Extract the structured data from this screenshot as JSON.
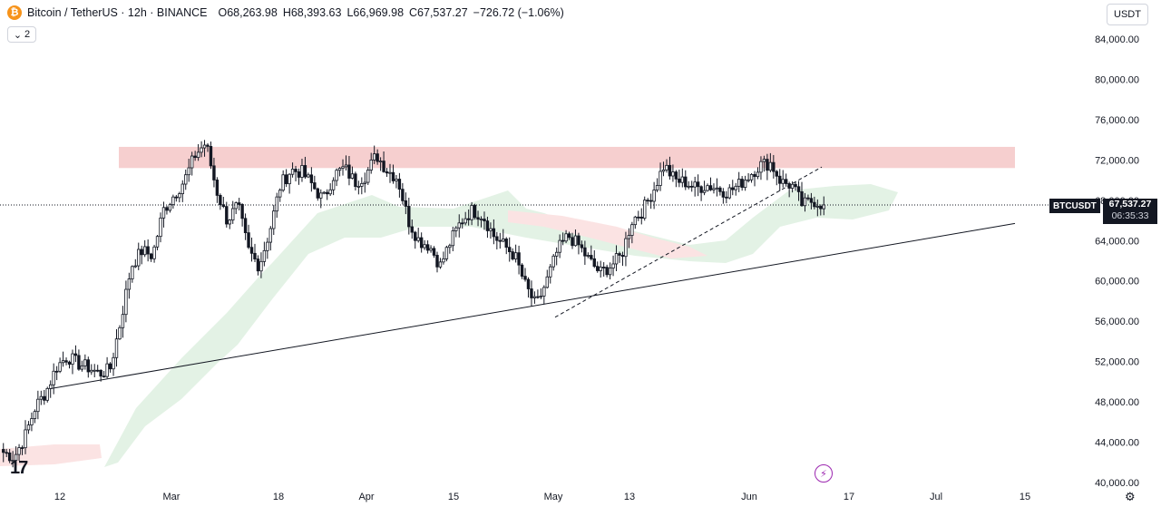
{
  "legend": {
    "icon": "bitcoin-icon",
    "title": "Bitcoin / TetherUS · 12h · BINANCE",
    "open_label": "O",
    "open": "68,263.98",
    "high_label": "H",
    "high": "68,393.63",
    "low_label": "L",
    "low": "66,969.98",
    "close_label": "C",
    "close": "67,537.27",
    "change": "−726.72 (−1.06%)",
    "indicator_count": "2"
  },
  "currency_button": "USDT",
  "price_tag": {
    "symbol": "BTCUSDT",
    "price": "67,537.27",
    "countdown": "06:35:33"
  },
  "colors": {
    "up": "#ffffff",
    "down": "#131722",
    "resistance": "#f4c7c7",
    "cloud_bull": "#e3f2e5",
    "cloud_bear": "#fbe3e3"
  },
  "chart_data": {
    "type": "candlestick",
    "symbol": "BTCUSDT",
    "interval": "12h",
    "ylim": [
      40000,
      86000
    ],
    "y_ticks": [
      "84,000.00",
      "80,000.00",
      "76,000.00",
      "72,000.00",
      "68,000.00",
      "64,000.00",
      "60,000.00",
      "56,000.00",
      "52,000.00",
      "48,000.00",
      "44,000.00",
      "40,000.00"
    ],
    "x_ticks": [
      "12",
      "Mar",
      "18",
      "Apr",
      "15",
      "May",
      "13",
      "Jun",
      "17",
      "Jul",
      "15"
    ],
    "close_path": [
      43000,
      42500,
      44500,
      47500,
      49000,
      51500,
      52500,
      51800,
      51400,
      50800,
      51200,
      56000,
      61500,
      63000,
      62500,
      67000,
      68500,
      70000,
      72500,
      73700,
      69000,
      66000,
      67500,
      63000,
      61500,
      65000,
      69500,
      71000,
      70800,
      69500,
      68000,
      70500,
      71200,
      69800,
      70500,
      72500,
      71000,
      70200,
      66000,
      64000,
      63500,
      61500,
      64000,
      66000,
      67000,
      66500,
      64500,
      63500,
      62500,
      59500,
      57500,
      60000,
      63000,
      64500,
      63500,
      62000,
      60800,
      61500,
      62500,
      66000,
      67000,
      69000,
      71500,
      70000,
      69800,
      69200,
      69500,
      69200,
      68800,
      69500,
      70500,
      71500,
      71700,
      69800,
      69500,
      67500,
      68000,
      67537
    ],
    "current_price": 67537.27,
    "resistance_zone": [
      71200,
      73300
    ],
    "trendlines": [
      {
        "style": "solid",
        "from": [
          49300
        ],
        "to": [
          65700
        ]
      },
      {
        "style": "dashed",
        "from": [
          56400
        ],
        "to": [
          71300
        ]
      }
    ]
  }
}
